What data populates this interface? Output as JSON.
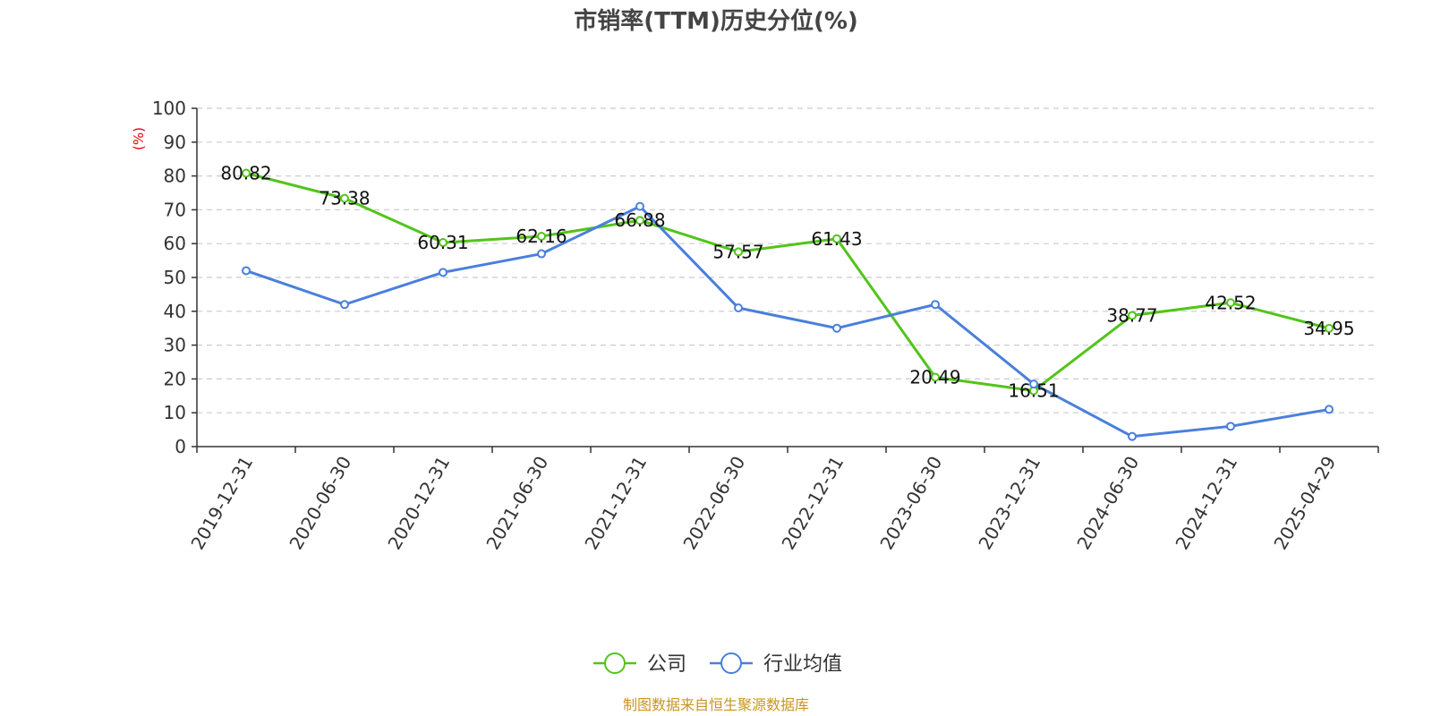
{
  "chart_data": {
    "type": "line",
    "title": "市销率(TTM)历史分位(%)",
    "ylabel": "(%)",
    "xlabel": "",
    "ylim": [
      0,
      100
    ],
    "yticks": [
      0,
      10,
      20,
      30,
      40,
      50,
      60,
      70,
      80,
      90,
      100
    ],
    "grid": true,
    "legend_position": "bottom-center",
    "categories": [
      "2019-12-31",
      "2020-06-30",
      "2020-12-31",
      "2021-06-30",
      "2021-12-31",
      "2022-06-30",
      "2022-12-31",
      "2023-06-30",
      "2023-12-31",
      "2024-06-30",
      "2024-12-31",
      "2025-04-29"
    ],
    "series": [
      {
        "name": "公司",
        "color": "#52c41a",
        "values": [
          80.82,
          73.38,
          60.31,
          62.16,
          66.88,
          57.57,
          61.43,
          20.49,
          16.51,
          38.77,
          42.52,
          34.95
        ],
        "labels": [
          "80.82",
          "73.38",
          "60.31",
          "62.16",
          "66.88",
          "57.57",
          "61.43",
          "20.49",
          "16.51",
          "38.77",
          "42.52",
          "34.95"
        ]
      },
      {
        "name": "行业均值",
        "color": "#4a7fdc",
        "values": [
          52,
          42,
          51.5,
          57,
          71,
          41,
          35,
          42,
          18.5,
          3,
          6,
          11
        ]
      }
    ],
    "source": "制图数据来自恒生聚源数据库"
  }
}
